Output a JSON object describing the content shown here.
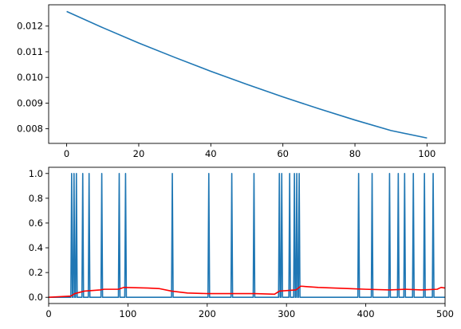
{
  "chart_data": [
    {
      "type": "line",
      "title": "",
      "xlabel": "",
      "ylabel": "",
      "xlim": [
        -5,
        105
      ],
      "ylim": [
        0.00743,
        0.01283
      ],
      "xticks": [
        0,
        20,
        40,
        60,
        80,
        100
      ],
      "xtick_labels": [
        "0",
        "20",
        "40",
        "60",
        "80",
        "100"
      ],
      "yticks": [
        0.008,
        0.009,
        0.01,
        0.011,
        0.012
      ],
      "ytick_labels": [
        "0.008",
        "0.009",
        "0.010",
        "0.011",
        "0.012"
      ],
      "grid": false,
      "series": [
        {
          "color": "#1f77b4",
          "x": [
            0,
            10,
            20,
            30,
            40,
            50,
            60,
            70,
            80,
            90,
            100
          ],
          "y": [
            0.01257,
            0.01194,
            0.01134,
            0.01078,
            0.01024,
            0.00973,
            0.00924,
            0.00878,
            0.00834,
            0.00793,
            0.00764
          ]
        }
      ]
    },
    {
      "type": "line",
      "title": "",
      "xlabel": "",
      "ylabel": "",
      "xlim": [
        0,
        500
      ],
      "ylim": [
        -0.05,
        1.05
      ],
      "xticks": [
        0,
        100,
        200,
        300,
        400,
        500
      ],
      "xtick_labels": [
        "0",
        "100",
        "200",
        "300",
        "400",
        "500"
      ],
      "yticks": [
        0.0,
        0.2,
        0.4,
        0.6,
        0.8,
        1.0
      ],
      "ytick_labels": [
        "0.0",
        "0.2",
        "0.4",
        "0.6",
        "0.8",
        "1.0"
      ],
      "grid": false,
      "series": [
        {
          "color": "#1f77b4",
          "spike_positions": [
            29,
            32,
            35,
            43,
            51,
            67,
            89,
            97,
            156,
            202,
            231,
            259,
            291,
            294,
            304,
            310,
            313,
            316,
            391,
            408,
            430,
            441,
            449,
            460,
            474,
            485
          ]
        },
        {
          "color": "#ff0000",
          "x": [
            0,
            28,
            33,
            45,
            65,
            70,
            88,
            95,
            125,
            140,
            155,
            175,
            200,
            230,
            260,
            285,
            291,
            312,
            318,
            340,
            380,
            400,
            430,
            450,
            470,
            490,
            495,
            500
          ],
          "y": [
            0.0,
            0.01,
            0.03,
            0.05,
            0.06,
            0.065,
            0.065,
            0.08,
            0.075,
            0.07,
            0.05,
            0.035,
            0.03,
            0.03,
            0.03,
            0.025,
            0.05,
            0.06,
            0.09,
            0.08,
            0.07,
            0.065,
            0.06,
            0.065,
            0.06,
            0.065,
            0.08,
            0.075
          ]
        }
      ]
    }
  ]
}
